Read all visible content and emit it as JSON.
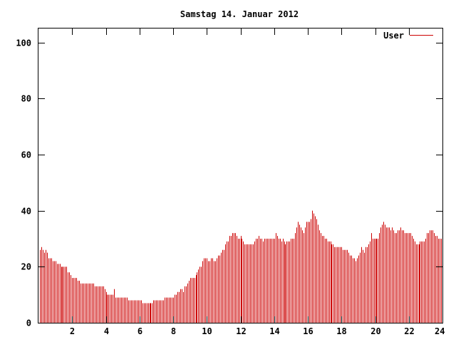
{
  "chart_data": {
    "type": "bar",
    "title": "Samstag 14. Januar 2012",
    "xlabel": "",
    "ylabel": "",
    "xlim": [
      0,
      24
    ],
    "ylim": [
      0,
      105
    ],
    "x_ticks": [
      2,
      4,
      6,
      8,
      10,
      12,
      14,
      16,
      18,
      20,
      22,
      24
    ],
    "y_ticks": [
      0,
      20,
      40,
      60,
      80,
      100
    ],
    "grid": false,
    "legend_position": "top-right",
    "bar_color": "#cc0000",
    "series": [
      {
        "name": "User",
        "step_minutes": 5,
        "values": [
          26,
          27,
          26,
          25,
          26,
          25,
          23,
          23,
          23,
          22,
          22,
          22,
          21,
          21,
          21,
          20,
          20,
          20,
          20,
          20,
          18,
          18,
          17,
          16,
          16,
          16,
          16,
          15,
          15,
          14,
          14,
          14,
          14,
          14,
          14,
          14,
          14,
          14,
          14,
          13,
          13,
          13,
          13,
          13,
          13,
          13,
          12,
          11,
          10,
          10,
          10,
          10,
          10,
          12,
          9,
          9,
          9,
          9,
          9,
          9,
          9,
          9,
          9,
          8,
          8,
          8,
          8,
          8,
          8,
          8,
          8,
          8,
          8,
          7,
          7,
          7,
          7,
          7,
          7,
          7,
          7,
          8,
          8,
          8,
          8,
          8,
          8,
          8,
          8,
          9,
          9,
          9,
          9,
          9,
          9,
          9,
          10,
          10,
          11,
          11,
          12,
          12,
          11,
          13,
          13,
          14,
          15,
          16,
          16,
          16,
          16,
          17,
          18,
          19,
          20,
          20,
          22,
          23,
          23,
          23,
          22,
          22,
          23,
          23,
          22,
          22,
          23,
          24,
          24,
          25,
          26,
          26,
          28,
          29,
          29,
          31,
          31,
          32,
          32,
          32,
          31,
          30,
          30,
          31,
          30,
          29,
          28,
          28,
          28,
          28,
          28,
          28,
          28,
          29,
          30,
          30,
          31,
          30,
          30,
          29,
          30,
          30,
          30,
          30,
          30,
          30,
          30,
          30,
          32,
          31,
          30,
          30,
          29,
          30,
          29,
          28,
          29,
          29,
          29,
          30,
          30,
          30,
          32,
          34,
          36,
          35,
          34,
          33,
          32,
          34,
          36,
          36,
          36,
          37,
          40,
          39,
          38,
          37,
          35,
          33,
          32,
          31,
          31,
          30,
          30,
          29,
          29,
          29,
          28,
          28,
          27,
          27,
          27,
          27,
          27,
          27,
          26,
          26,
          26,
          26,
          25,
          24,
          24,
          23,
          23,
          22,
          23,
          24,
          25,
          27,
          26,
          25,
          27,
          27,
          28,
          29,
          32,
          30,
          30,
          30,
          30,
          30,
          32,
          34,
          35,
          36,
          35,
          34,
          34,
          34,
          33,
          34,
          33,
          32,
          32,
          33,
          33,
          34,
          33,
          33,
          32,
          32,
          32,
          32,
          32,
          31,
          30,
          29,
          28,
          28,
          28,
          29,
          29,
          29,
          29,
          30,
          32,
          32,
          33,
          33,
          33,
          32,
          31,
          31,
          30,
          30,
          30,
          30
        ]
      }
    ]
  }
}
